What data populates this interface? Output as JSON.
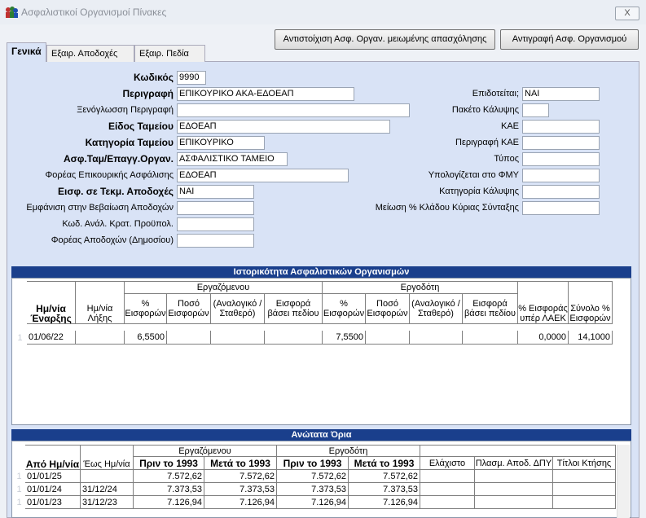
{
  "window": {
    "title": "Ασφαλιστικοί Οργανισμοί Πίνακες",
    "close": "X"
  },
  "buttons": [
    "Αντιστοίχιση Ασφ. Οργαν. μειωμένης απασχόλησης",
    "Αντιγραφή Ασφ. Οργανισμού"
  ],
  "tabs": [
    "Γενικά",
    "Εξαιρ. Αποδοχές",
    "Εξαιρ. Πεδία"
  ],
  "form": {
    "left": [
      {
        "label": "Κωδικός",
        "value": "9990",
        "bold": true
      },
      {
        "label": "Περιγραφή",
        "value": "ΕΠΙΚΟΥΡΙΚΟ ΑΚΑ-ΕΔΟΕΑΠ",
        "bold": true
      },
      {
        "label": "Ξενόγλωσση Περιγραφή",
        "value": null,
        "bold": false
      },
      {
        "label": "Είδος Ταμείου",
        "value": "ΕΔΟΕΑΠ",
        "bold": true
      },
      {
        "label": "Κατηγορία Ταμείου",
        "value": "ΕΠΙΚΟΥΡΙΚΟ",
        "bold": true
      },
      {
        "label": "Ασφ.Ταμ/Επαγγ.Οργαν.",
        "value": "ΑΣΦΑΛΙΣΤΙΚΟ ΤΑΜΕΙΟ",
        "bold": true
      },
      {
        "label": "Φορέας Επικουρικής Ασφάλισης",
        "value": "ΕΔΟΕΑΠ",
        "bold": false
      },
      {
        "label": "Εισφ. σε Τεκμ. Αποδοχές",
        "value": "ΝΑΙ",
        "bold": true
      },
      {
        "label": "Εμφάνιση στην Βεβαίωση Αποδοχών",
        "value": null,
        "bold": false
      },
      {
        "label": "Κωδ. Ανάλ. Κρατ. Προϋπολ.",
        "value": null,
        "bold": false
      },
      {
        "label": "Φορέας Αποδοχών (Δημοσίου)",
        "value": null,
        "bold": false
      }
    ],
    "right": [
      {
        "label": "Επιδοτείται;",
        "value": "ΝΑΙ"
      },
      {
        "label": "Πακέτο Κάλυψης",
        "value": null
      },
      {
        "label": "ΚΑΕ",
        "value": null
      },
      {
        "label": "Περιγραφή ΚΑΕ",
        "value": null
      },
      {
        "label": "Τύπος",
        "value": null
      },
      {
        "label": "Υπολογίζεται στο ΦΜΥ",
        "value": null
      },
      {
        "label": "Κατηγορία Κάλυψης",
        "value": null
      },
      {
        "label": "Μείωση % Κλάδου Κύριας Σύνταξης",
        "value": null
      }
    ]
  },
  "history": {
    "title": "Ιστορικότητα Ασφαλιστικών Οργανισμών",
    "groups": [
      "Εργαζόμενου",
      "Εργοδότη"
    ],
    "columns": [
      {
        "label": "Ημ/νία Έναρξης",
        "bold": true
      },
      {
        "label": "Ημ/νία Λήξης",
        "bold": false
      },
      {
        "label": "% Εισφορών",
        "bold": false
      },
      {
        "label": "Ποσό Εισφορών",
        "bold": false
      },
      {
        "label": "(Αναλογικό / Σταθερό)",
        "bold": false
      },
      {
        "label": "Εισφορά βάσει πεδίου",
        "bold": false
      },
      {
        "label": "% Εισφορών",
        "bold": false
      },
      {
        "label": "Ποσό Εισφορών",
        "bold": false
      },
      {
        "label": "(Αναλογικό / Σταθερό)",
        "bold": false
      },
      {
        "label": "Εισφορά βάσει πεδίου",
        "bold": false
      },
      {
        "label": "% Εισφοράς υπέρ ΛΑΕΚ",
        "bold": false
      },
      {
        "label": "Σύνολο % Εισφορών",
        "bold": false
      }
    ],
    "rows": [
      {
        "index": "1",
        "cells": [
          "01/06/22",
          null,
          "6,5500",
          null,
          null,
          null,
          "7,5500",
          null,
          null,
          null,
          "0,0000",
          "14,1000"
        ]
      }
    ]
  },
  "limits": {
    "title": "Ανώτατα Όρια",
    "groups": [
      "Εργαζόμενου",
      "Εργοδότη"
    ],
    "columns": [
      {
        "label": "Από Ημ/νία",
        "bold": true
      },
      {
        "label": "Έως Ημ/νία",
        "bold": false
      },
      {
        "label": "Πριν το 1993",
        "bold": true
      },
      {
        "label": "Μετά το 1993",
        "bold": true
      },
      {
        "label": "Πριν το 1993",
        "bold": true
      },
      {
        "label": "Μετά το 1993",
        "bold": true
      },
      {
        "label": "Ελάχιστο",
        "bold": false
      },
      {
        "label": "Πλασμ. Αποδ. ΔΠΥ",
        "bold": false
      },
      {
        "label": "Τίτλοι Κτήσης",
        "bold": false
      }
    ],
    "rows": [
      {
        "index": "1",
        "cells": [
          "01/01/25",
          null,
          "7.572,62",
          "7.572,62",
          "7.572,62",
          "7.572,62",
          null,
          null,
          null
        ]
      },
      {
        "index": "1",
        "cells": [
          "01/01/24",
          "31/12/24",
          "7.373,53",
          "7.373,53",
          "7.373,53",
          "7.373,53",
          null,
          null,
          null
        ]
      },
      {
        "index": "1",
        "cells": [
          "01/01/23",
          "31/12/23",
          "7.126,94",
          "7.126,94",
          "7.126,94",
          "7.126,94",
          null,
          null,
          null
        ]
      }
    ]
  }
}
